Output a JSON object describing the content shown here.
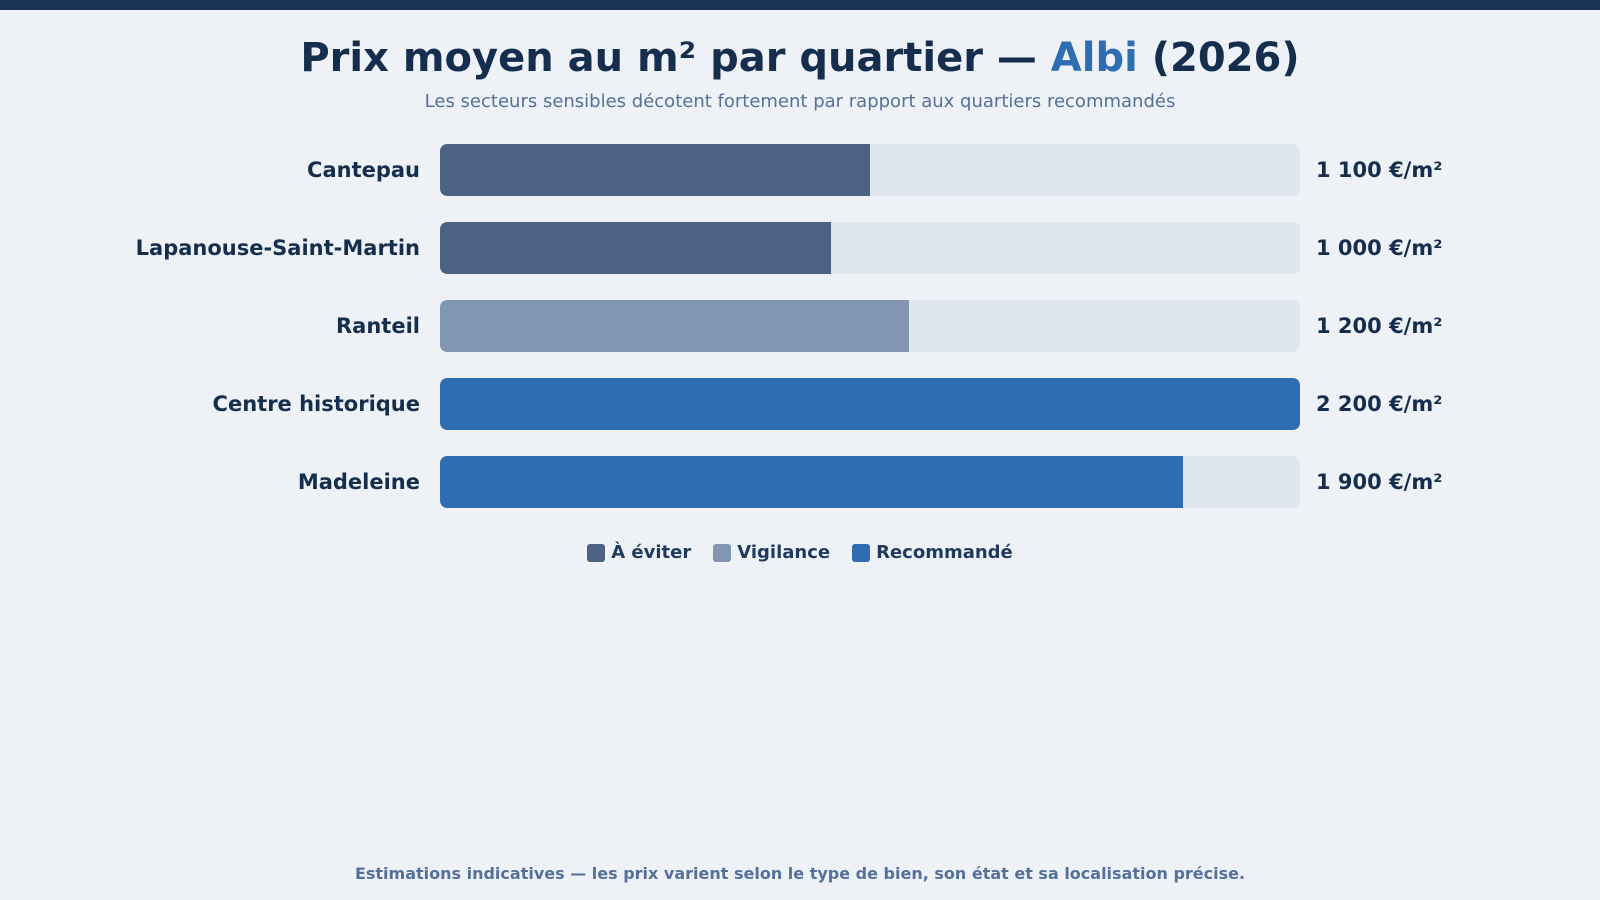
{
  "header": {
    "title_prefix": "Prix moyen au m² par quartier — ",
    "title_city": "Albi",
    "title_suffix": " (2026)",
    "subtitle": "Les secteurs sensibles décotent fortement par rapport aux quartiers recommandés"
  },
  "colors": {
    "avoid": "#4d6282",
    "vigilance": "#8295b2",
    "recommended": "#2e6db1",
    "track": "#dfe6ef"
  },
  "chart_data": {
    "type": "bar",
    "orientation": "horizontal",
    "title": "Prix moyen au m² par quartier — Albi (2026)",
    "subtitle": "Les secteurs sensibles décotent fortement par rapport aux quartiers recommandés",
    "xlim": [
      0,
      2200
    ],
    "categories": [
      "Cantepau",
      "Lapanouse-Saint-Martin",
      "Ranteil",
      "Centre historique",
      "Madeleine"
    ],
    "values": [
      1100,
      1000,
      1200,
      2200,
      1900
    ],
    "value_labels": [
      "1 100 €/m²",
      "1 000 €/m²",
      "1 200 €/m²",
      "2 200 €/m²",
      "1 900 €/m²"
    ],
    "groups": [
      "avoid",
      "avoid",
      "vigilance",
      "recommended",
      "recommended"
    ],
    "legend": [
      {
        "key": "avoid",
        "label": "À éviter"
      },
      {
        "key": "vigilance",
        "label": "Vigilance"
      },
      {
        "key": "recommended",
        "label": "Recommandé"
      }
    ],
    "legend_position": "bottom",
    "grid": false
  },
  "footnote": "Estimations indicatives — les prix varient selon le type de bien, son état et sa localisation précise."
}
